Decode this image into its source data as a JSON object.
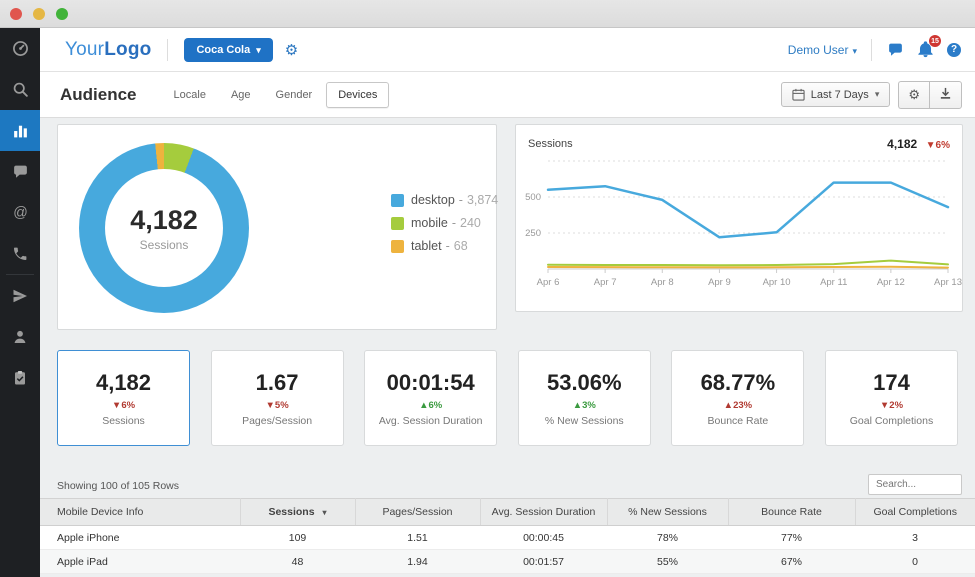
{
  "window": {
    "buttons": [
      "close",
      "minimize",
      "zoom"
    ]
  },
  "sidebar": {
    "items": [
      {
        "name": "dashboard"
      },
      {
        "name": "search"
      },
      {
        "name": "analytics",
        "active": true
      },
      {
        "name": "comments"
      },
      {
        "name": "mentions"
      },
      {
        "name": "calls"
      },
      {
        "name": "campaigns"
      },
      {
        "name": "contacts"
      },
      {
        "name": "tasks"
      }
    ]
  },
  "header": {
    "logo_part1": "Your",
    "logo_part2": "Logo",
    "client_selector": "Coca Cola",
    "caret": "▾",
    "gear": "⚙",
    "user_name": "Demo User",
    "notification_count": "15",
    "help_glyph": "?"
  },
  "toolbar": {
    "page_title": "Audience",
    "tabs": [
      "Locale",
      "Age",
      "Gender",
      "Devices"
    ],
    "active_tab": "Devices",
    "date_range": "Last 7 Days",
    "caret": "▾",
    "gear": "⚙"
  },
  "chart_data": [
    {
      "type": "donut",
      "center_value": "4,182",
      "center_label": "Sessions",
      "legend_separator": "-",
      "slices": [
        {
          "label": "desktop",
          "value": 3874,
          "display": "3,874",
          "color": "#47a9dd"
        },
        {
          "label": "mobile",
          "value": 240,
          "display": "240",
          "color": "#a5cc3d"
        },
        {
          "label": "tablet",
          "value": 68,
          "display": "68",
          "color": "#eeb33e"
        }
      ]
    },
    {
      "type": "line",
      "title": "Sessions",
      "total": "4,182",
      "delta": {
        "arrow": "▼",
        "value": "6%",
        "color": "#c03a2e"
      },
      "x": [
        "Apr 6",
        "Apr 7",
        "Apr 8",
        "Apr 9",
        "Apr 10",
        "Apr 11",
        "Apr 12",
        "Apr 13"
      ],
      "series": [
        {
          "name": "desktop",
          "color": "#47a9dd",
          "values": [
            550,
            575,
            480,
            220,
            255,
            600,
            600,
            430
          ]
        },
        {
          "name": "mobile",
          "color": "#a5cc3d",
          "values": [
            30,
            28,
            28,
            26,
            28,
            34,
            58,
            32
          ]
        },
        {
          "name": "tablet",
          "color": "#eeb33e",
          "values": [
            14,
            13,
            12,
            11,
            12,
            14,
            16,
            10
          ]
        }
      ],
      "yticks": [
        250,
        500
      ],
      "ylim": [
        0,
        750
      ],
      "grid": "dashed-horizontal",
      "legend_position": "none"
    }
  ],
  "stat_cards": [
    {
      "value": "4,182",
      "arrow": "▼",
      "delta": "6%",
      "delta_color": "#b13a31",
      "label": "Sessions",
      "selected": true
    },
    {
      "value": "1.67",
      "arrow": "▼",
      "delta": "5%",
      "delta_color": "#b13a31",
      "label": "Pages/Session",
      "selected": false
    },
    {
      "value": "00:01:54",
      "arrow": "▲",
      "delta": "6%",
      "delta_color": "#3a9a3f",
      "label": "Avg. Session Duration",
      "selected": false
    },
    {
      "value": "53.06%",
      "arrow": "▲",
      "delta": "3%",
      "delta_color": "#3a9a3f",
      "label": "% New Sessions",
      "selected": false
    },
    {
      "value": "68.77%",
      "arrow": "▲",
      "delta": "23%",
      "delta_color": "#b13a31",
      "label": "Bounce Rate",
      "selected": false
    },
    {
      "value": "174",
      "arrow": "▼",
      "delta": "2%",
      "delta_color": "#b13a31",
      "label": "Goal Completions",
      "selected": false
    }
  ],
  "table": {
    "summary": "Showing 100 of 105 Rows",
    "search_placeholder": "Search...",
    "sort_column": "Sessions",
    "sort_caret": "▾",
    "columns": [
      "Mobile Device Info",
      "Sessions",
      "Pages/Session",
      "Avg. Session Duration",
      "% New Sessions",
      "Bounce Rate",
      "Goal Completions"
    ],
    "rows": [
      [
        "Apple iPhone",
        "109",
        "1.51",
        "00:00:45",
        "78%",
        "77%",
        "3"
      ],
      [
        "Apple iPad",
        "48",
        "1.94",
        "00:01:57",
        "55%",
        "67%",
        "0"
      ]
    ]
  }
}
